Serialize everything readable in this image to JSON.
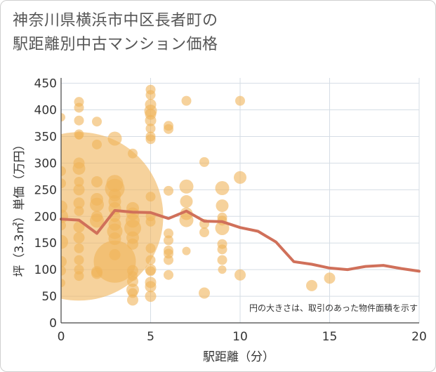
{
  "chart_data": {
    "type": "scatter",
    "title_line1": "神奈川県横浜市中区長者町の",
    "title_line2": "駅距離別中古マンション価格",
    "xlabel": "駅距離（分）",
    "ylabel": "坪（3.3㎡）単価（万円）",
    "note": "円の大きさは、取引のあった物件面積を示す",
    "xlim": [
      0,
      20
    ],
    "ylim": [
      0,
      460
    ],
    "xticks": [
      0,
      5,
      10,
      15,
      20
    ],
    "yticks": [
      0,
      50,
      100,
      150,
      200,
      250,
      300,
      350,
      400,
      450
    ],
    "colors": {
      "bubble": "#f0b45a",
      "line": "#d0705a",
      "grid": "#d5dde5"
    },
    "scatter_points": [
      {
        "x": 0,
        "y": 386,
        "size": 6
      },
      {
        "x": 0,
        "y": 285,
        "size": 7
      },
      {
        "x": 0,
        "y": 262,
        "size": 7
      },
      {
        "x": 0,
        "y": 218,
        "size": 9
      },
      {
        "x": 0,
        "y": 200,
        "size": 10
      },
      {
        "x": 0,
        "y": 183,
        "size": 7
      },
      {
        "x": 0,
        "y": 152,
        "size": 10
      },
      {
        "x": 0,
        "y": 115,
        "size": 8
      },
      {
        "x": 0,
        "y": 98,
        "size": 7
      },
      {
        "x": 0,
        "y": 75,
        "size": 6
      },
      {
        "x": 1,
        "y": 200,
        "size": 120
      },
      {
        "x": 1,
        "y": 415,
        "size": 7
      },
      {
        "x": 1,
        "y": 404,
        "size": 7
      },
      {
        "x": 1,
        "y": 380,
        "size": 7
      },
      {
        "x": 1,
        "y": 354,
        "size": 7
      },
      {
        "x": 1,
        "y": 352,
        "size": 6
      },
      {
        "x": 1,
        "y": 300,
        "size": 8
      },
      {
        "x": 1,
        "y": 290,
        "size": 9
      },
      {
        "x": 1,
        "y": 265,
        "size": 7
      },
      {
        "x": 1,
        "y": 250,
        "size": 8
      },
      {
        "x": 1,
        "y": 225,
        "size": 8
      },
      {
        "x": 1,
        "y": 210,
        "size": 7
      },
      {
        "x": 1,
        "y": 180,
        "size": 8
      },
      {
        "x": 1,
        "y": 160,
        "size": 8
      },
      {
        "x": 1,
        "y": 140,
        "size": 7
      },
      {
        "x": 1,
        "y": 118,
        "size": 7
      },
      {
        "x": 1,
        "y": 100,
        "size": 7
      },
      {
        "x": 1,
        "y": 88,
        "size": 7
      },
      {
        "x": 2,
        "y": 378,
        "size": 7
      },
      {
        "x": 2,
        "y": 335,
        "size": 7
      },
      {
        "x": 2,
        "y": 265,
        "size": 8
      },
      {
        "x": 2,
        "y": 232,
        "size": 9
      },
      {
        "x": 2,
        "y": 222,
        "size": 10
      },
      {
        "x": 2,
        "y": 200,
        "size": 8
      },
      {
        "x": 2,
        "y": 192,
        "size": 10
      },
      {
        "x": 2,
        "y": 96,
        "size": 8
      },
      {
        "x": 2,
        "y": 93,
        "size": 8
      },
      {
        "x": 3,
        "y": 346,
        "size": 10
      },
      {
        "x": 3,
        "y": 262,
        "size": 12
      },
      {
        "x": 3,
        "y": 252,
        "size": 14
      },
      {
        "x": 3,
        "y": 240,
        "size": 9
      },
      {
        "x": 3,
        "y": 228,
        "size": 9
      },
      {
        "x": 3,
        "y": 215,
        "size": 9
      },
      {
        "x": 3,
        "y": 200,
        "size": 8
      },
      {
        "x": 3,
        "y": 185,
        "size": 9
      },
      {
        "x": 3,
        "y": 172,
        "size": 11
      },
      {
        "x": 3,
        "y": 158,
        "size": 9
      },
      {
        "x": 3,
        "y": 128,
        "size": 8
      },
      {
        "x": 3,
        "y": 115,
        "size": 30
      },
      {
        "x": 4,
        "y": 318,
        "size": 7
      },
      {
        "x": 4,
        "y": 215,
        "size": 9
      },
      {
        "x": 4,
        "y": 205,
        "size": 9
      },
      {
        "x": 4,
        "y": 192,
        "size": 10
      },
      {
        "x": 4,
        "y": 178,
        "size": 12
      },
      {
        "x": 4,
        "y": 160,
        "size": 9
      },
      {
        "x": 4,
        "y": 148,
        "size": 8
      },
      {
        "x": 4,
        "y": 98,
        "size": 8
      },
      {
        "x": 4,
        "y": 88,
        "size": 7
      },
      {
        "x": 4,
        "y": 78,
        "size": 8
      },
      {
        "x": 4,
        "y": 62,
        "size": 9
      },
      {
        "x": 4,
        "y": 56,
        "size": 7
      },
      {
        "x": 4,
        "y": 43,
        "size": 8
      },
      {
        "x": 5,
        "y": 438,
        "size": 7
      },
      {
        "x": 5,
        "y": 428,
        "size": 7
      },
      {
        "x": 5,
        "y": 410,
        "size": 8
      },
      {
        "x": 5,
        "y": 398,
        "size": 9
      },
      {
        "x": 5,
        "y": 392,
        "size": 8
      },
      {
        "x": 5,
        "y": 380,
        "size": 8
      },
      {
        "x": 5,
        "y": 365,
        "size": 7
      },
      {
        "x": 5,
        "y": 350,
        "size": 7
      },
      {
        "x": 5,
        "y": 345,
        "size": 7
      },
      {
        "x": 5,
        "y": 237,
        "size": 7
      },
      {
        "x": 5,
        "y": 200,
        "size": 7
      },
      {
        "x": 5,
        "y": 190,
        "size": 7
      },
      {
        "x": 5,
        "y": 140,
        "size": 7
      },
      {
        "x": 5,
        "y": 118,
        "size": 7
      },
      {
        "x": 5,
        "y": 100,
        "size": 8
      },
      {
        "x": 5,
        "y": 97,
        "size": 7
      },
      {
        "x": 5,
        "y": 76,
        "size": 8
      },
      {
        "x": 5,
        "y": 68,
        "size": 8
      },
      {
        "x": 5,
        "y": 50,
        "size": 8
      },
      {
        "x": 6,
        "y": 370,
        "size": 7
      },
      {
        "x": 6,
        "y": 364,
        "size": 7
      },
      {
        "x": 6,
        "y": 248,
        "size": 7
      },
      {
        "x": 6,
        "y": 168,
        "size": 7
      },
      {
        "x": 6,
        "y": 155,
        "size": 7
      },
      {
        "x": 6,
        "y": 136,
        "size": 7
      },
      {
        "x": 6,
        "y": 130,
        "size": 7
      },
      {
        "x": 6,
        "y": 118,
        "size": 7
      },
      {
        "x": 6,
        "y": 90,
        "size": 7
      },
      {
        "x": 7,
        "y": 417,
        "size": 7
      },
      {
        "x": 7,
        "y": 256,
        "size": 10
      },
      {
        "x": 7,
        "y": 228,
        "size": 9
      },
      {
        "x": 7,
        "y": 205,
        "size": 9
      },
      {
        "x": 7,
        "y": 193,
        "size": 10
      },
      {
        "x": 7,
        "y": 135,
        "size": 6
      },
      {
        "x": 8,
        "y": 302,
        "size": 7
      },
      {
        "x": 8,
        "y": 186,
        "size": 7
      },
      {
        "x": 8,
        "y": 170,
        "size": 7
      },
      {
        "x": 8,
        "y": 56,
        "size": 8
      },
      {
        "x": 9,
        "y": 253,
        "size": 10
      },
      {
        "x": 9,
        "y": 220,
        "size": 9
      },
      {
        "x": 9,
        "y": 198,
        "size": 7
      },
      {
        "x": 9,
        "y": 192,
        "size": 7
      },
      {
        "x": 9,
        "y": 178,
        "size": 10
      },
      {
        "x": 9,
        "y": 148,
        "size": 7
      },
      {
        "x": 9,
        "y": 138,
        "size": 7
      },
      {
        "x": 9,
        "y": 118,
        "size": 7
      },
      {
        "x": 9,
        "y": 100,
        "size": 6
      },
      {
        "x": 10,
        "y": 417,
        "size": 7
      },
      {
        "x": 10,
        "y": 273,
        "size": 9
      },
      {
        "x": 10,
        "y": 90,
        "size": 8
      },
      {
        "x": 14,
        "y": 70,
        "size": 8
      },
      {
        "x": 15,
        "y": 84,
        "size": 8
      }
    ],
    "series": [
      {
        "name": "average",
        "x": [
          0,
          1,
          2,
          3,
          4,
          5,
          6,
          7,
          8,
          9,
          10,
          11,
          12,
          13,
          14,
          15,
          16,
          17,
          18,
          19,
          20
        ],
        "y": [
          195,
          193,
          168,
          211,
          208,
          207,
          196,
          210,
          191,
          190,
          179,
          172,
          152,
          115,
          110,
          103,
          100,
          106,
          108,
          102,
          97
        ]
      }
    ]
  }
}
